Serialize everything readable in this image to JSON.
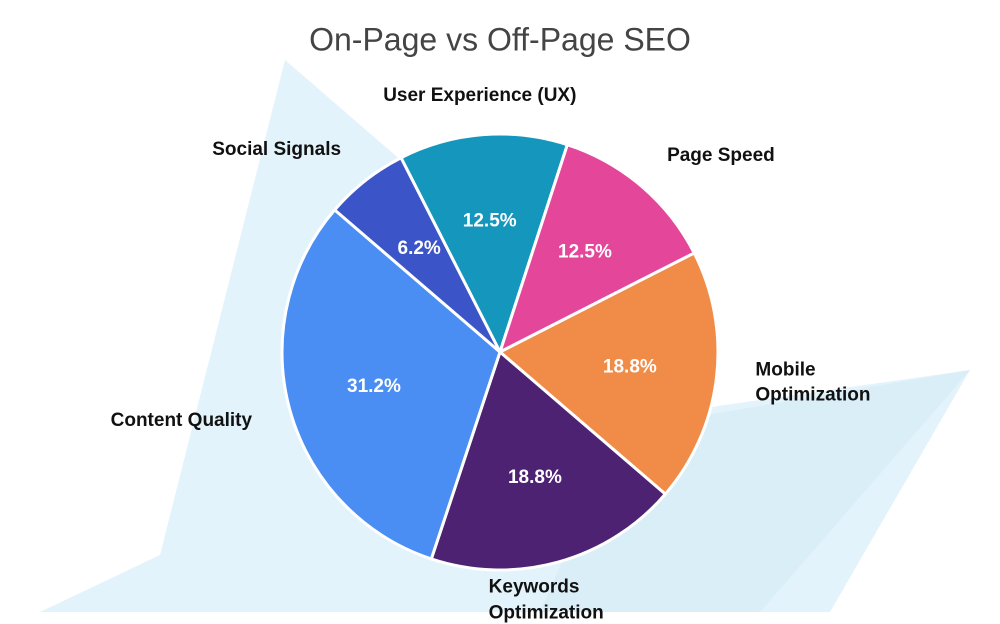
{
  "chart_data": {
    "type": "pie",
    "title": "On-Page vs Off-Page SEO",
    "categories": [
      "User Experience (UX)",
      "Page Speed",
      "Mobile Optimization",
      "Keywords Optimization",
      "Content Quality",
      "Social Signals"
    ],
    "values": [
      12.5,
      12.5,
      18.8,
      18.8,
      31.2,
      6.2
    ],
    "value_labels": [
      "12.5%",
      "12.5%",
      "18.8%",
      "18.8%",
      "31.2%",
      "6.2%"
    ],
    "colors": [
      "#1596bd",
      "#e4479a",
      "#f08c47",
      "#4d2272",
      "#4a8ef4",
      "#3b55c8"
    ]
  }
}
